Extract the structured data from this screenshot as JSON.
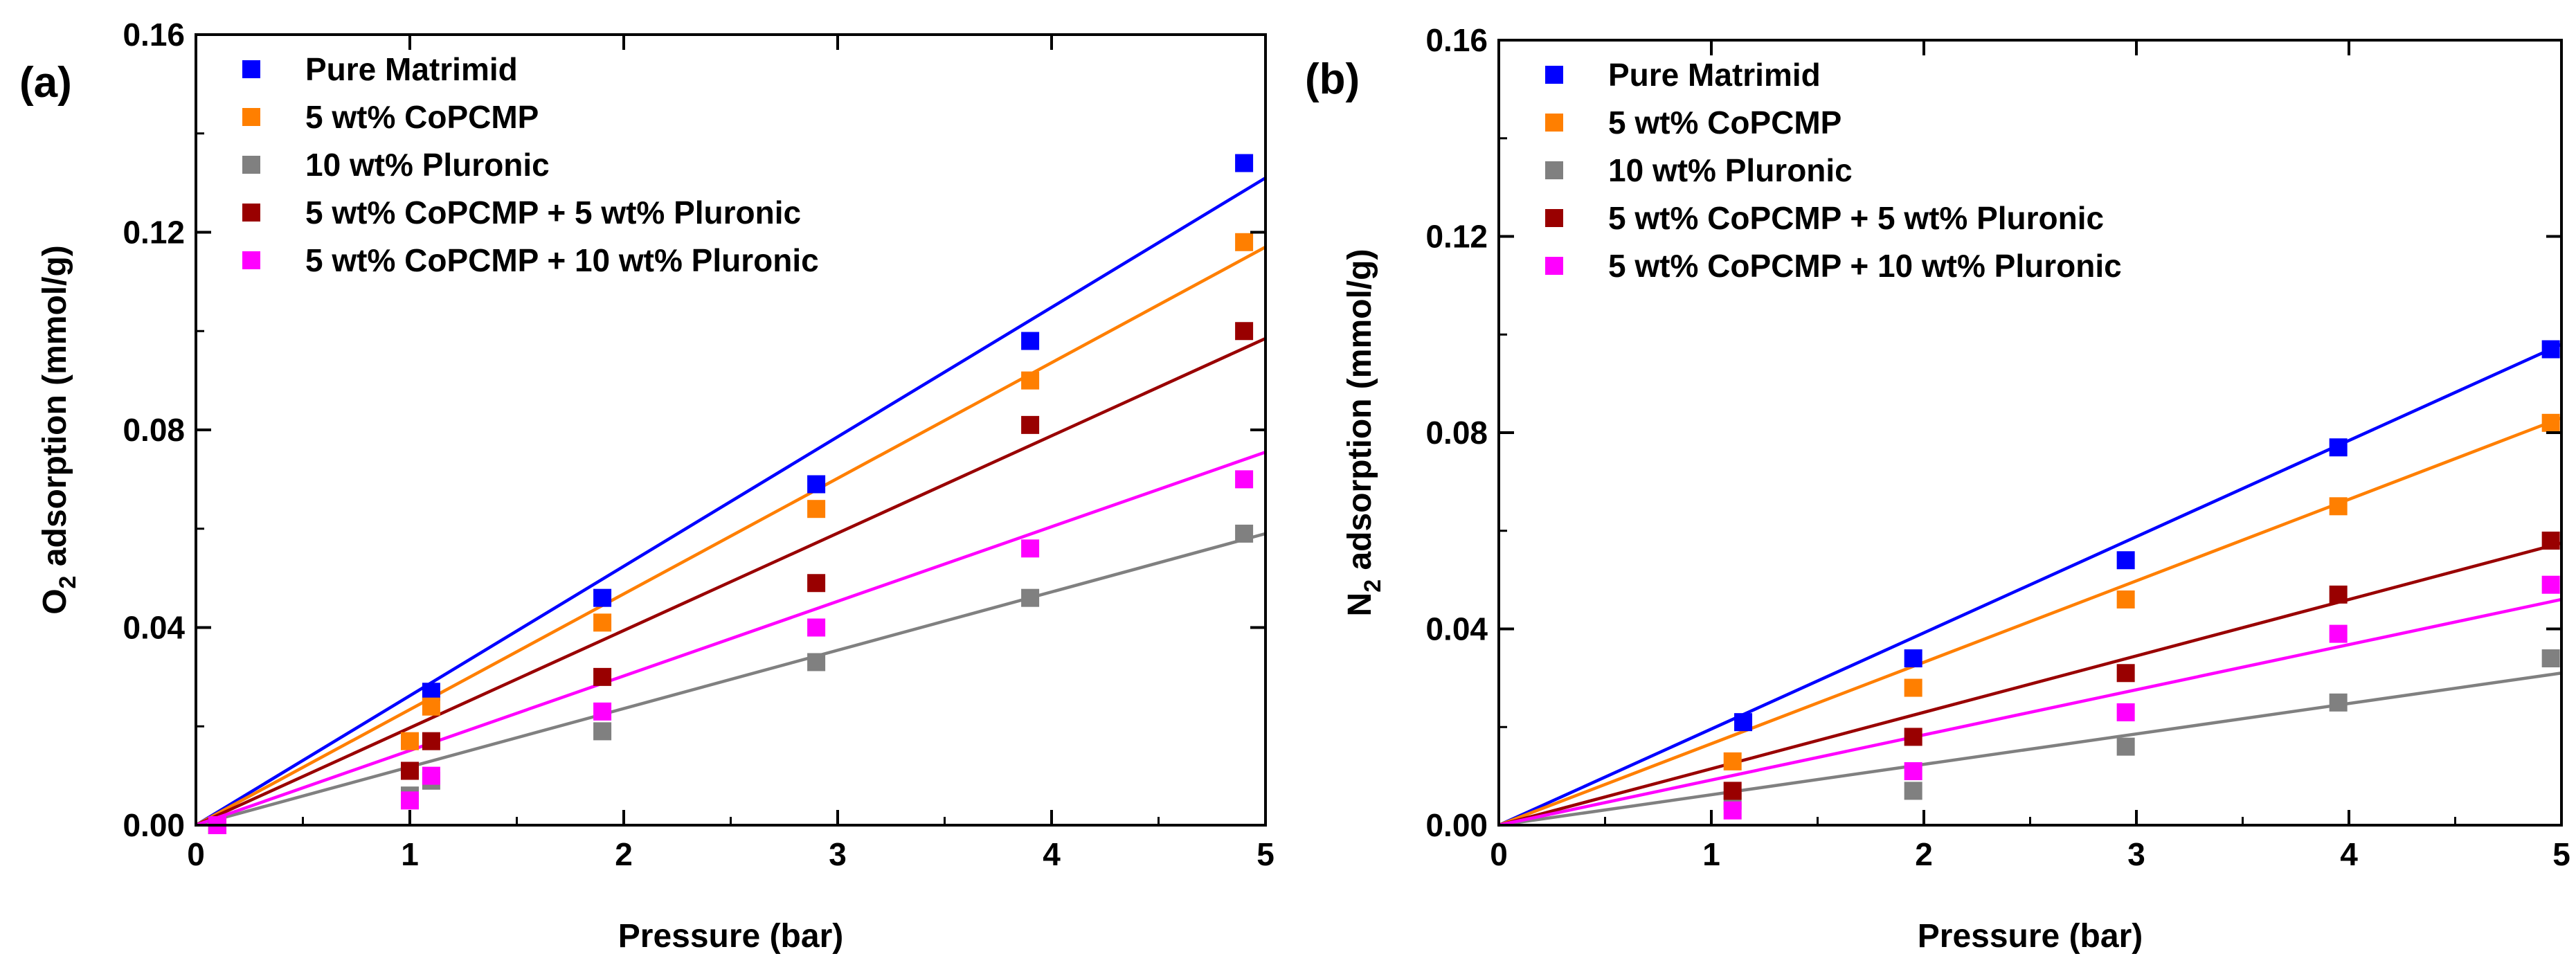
{
  "chart_data": [
    {
      "type": "scatter",
      "panel_label": "(a)",
      "title": "",
      "xlabel": "Pressure (bar)",
      "ylabel_main": "O",
      "ylabel_sub": "2",
      "ylabel_rest": " adsorption (mmol/g)",
      "xlim": [
        0,
        5
      ],
      "ylim": [
        0,
        0.16
      ],
      "xticks": [
        "0",
        "1",
        "2",
        "3",
        "4",
        "5"
      ],
      "yticks": [
        "0.00",
        "0.04",
        "0.08",
        "0.12",
        "0.16"
      ],
      "grid": false,
      "legend_position": "top-left",
      "series": [
        {
          "name": "Pure Matrimid",
          "color": "#0000FF",
          "x": [
            0.1,
            1.1,
            1.9,
            2.9,
            3.9,
            4.9
          ],
          "y": [
            0.0,
            0.027,
            0.046,
            0.069,
            0.098,
            0.134
          ],
          "fit_slope": 0.0262
        },
        {
          "name": "5 wt% CoPCMP",
          "color": "#FF7F00",
          "x": [
            0.1,
            1.0,
            1.1,
            1.9,
            2.9,
            3.9,
            4.9
          ],
          "y": [
            0.0,
            0.017,
            0.024,
            0.041,
            0.064,
            0.09,
            0.118
          ],
          "fit_slope": 0.0234
        },
        {
          "name": "10 wt% Pluronic",
          "color": "#808080",
          "x": [
            0.1,
            1.0,
            1.1,
            1.9,
            2.9,
            3.9,
            4.9
          ],
          "y": [
            0.0,
            0.006,
            0.009,
            0.019,
            0.033,
            0.046,
            0.059
          ],
          "fit_slope": 0.0118
        },
        {
          "name": "5 wt% CoPCMP + 5 wt% Pluronic",
          "color": "#990000",
          "x": [
            0.1,
            1.0,
            1.1,
            1.9,
            2.9,
            3.9,
            4.9
          ],
          "y": [
            0.0,
            0.011,
            0.017,
            0.03,
            0.049,
            0.081,
            0.1
          ],
          "fit_slope": 0.0197
        },
        {
          "name": "5 wt% CoPCMP + 10 wt% Pluronic",
          "color": "#FF00FF",
          "x": [
            0.1,
            1.0,
            1.1,
            1.9,
            2.9,
            3.9,
            4.9
          ],
          "y": [
            0.0,
            0.005,
            0.01,
            0.023,
            0.04,
            0.056,
            0.07
          ],
          "fit_slope": 0.0151
        }
      ]
    },
    {
      "type": "scatter",
      "panel_label": "(b)",
      "title": "",
      "xlabel": "Pressure (bar)",
      "ylabel_main": "N",
      "ylabel_sub": "2",
      "ylabel_rest": " adsorption (mmol/g)",
      "xlim": [
        0,
        5
      ],
      "ylim": [
        0,
        0.16
      ],
      "xticks": [
        "0",
        "1",
        "2",
        "3",
        "4",
        "5"
      ],
      "yticks": [
        "0.00",
        "0.04",
        "0.08",
        "0.12",
        "0.16"
      ],
      "grid": false,
      "legend_position": "top-left",
      "series": [
        {
          "name": "Pure Matrimid",
          "color": "#0000FF",
          "x": [
            1.15,
            1.95,
            2.95,
            3.95,
            4.95
          ],
          "y": [
            0.021,
            0.034,
            0.054,
            0.077,
            0.097
          ],
          "fit_slope": 0.0196
        },
        {
          "name": "5 wt% CoPCMP",
          "color": "#FF7F00",
          "x": [
            1.1,
            1.95,
            2.95,
            3.95,
            4.95
          ],
          "y": [
            0.013,
            0.028,
            0.046,
            0.065,
            0.082
          ],
          "fit_slope": 0.0166
        },
        {
          "name": "10 wt% Pluronic",
          "color": "#808080",
          "x": [
            1.1,
            1.95,
            2.95,
            3.95,
            4.95
          ],
          "y": [
            0.005,
            0.007,
            0.016,
            0.025,
            0.034
          ],
          "fit_slope": 0.0062
        },
        {
          "name": "5 wt% CoPCMP + 5 wt% Pluronic",
          "color": "#990000",
          "x": [
            1.1,
            1.95,
            2.95,
            3.95,
            4.95
          ],
          "y": [
            0.007,
            0.018,
            0.031,
            0.047,
            0.058
          ],
          "fit_slope": 0.0115
        },
        {
          "name": "5 wt% CoPCMP + 10 wt% Pluronic",
          "color": "#FF00FF",
          "x": [
            1.1,
            1.95,
            2.95,
            3.95,
            4.95
          ],
          "y": [
            0.003,
            0.011,
            0.023,
            0.039,
            0.049
          ],
          "fit_slope": 0.0092
        }
      ]
    }
  ]
}
